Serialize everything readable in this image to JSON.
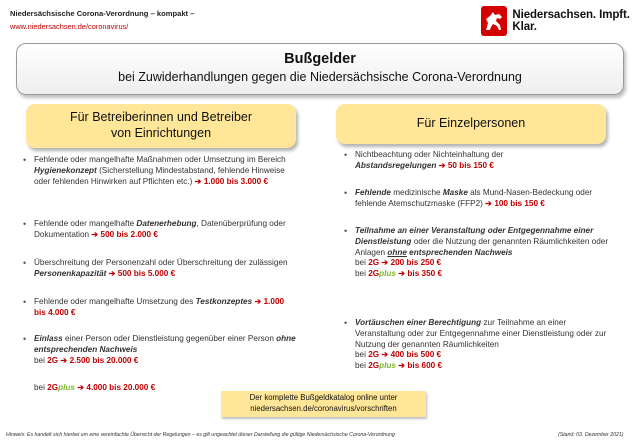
{
  "header": {
    "title": "Niedersächsische Corona-Verordnung – kompakt –",
    "url": "www.niedersachsen.de/coronavirus/",
    "logo_text": "Niedersachsen. Impft. Klar.",
    "logo_icon": "horse-icon",
    "logo_color": "#d40000"
  },
  "title": {
    "main": "Bußgelder",
    "sub": "bei Zuwiderhandlungen gegen die Niedersächsische Corona-Verordnung"
  },
  "left": {
    "heading_line1": "Für Betreiberinnen und Betreiber",
    "heading_line2": "von Einrichtungen",
    "items": [
      {
        "pre": "Fehlende oder mangelhafte Maßnahmen oder Umsetzung im Bereich ",
        "em": "Hygienekonzept",
        "post": " (Sicherstellung Mindestabstand, fehlende Hinweise oder fehlenden Hinwirken auf Pflichten etc.) ",
        "amount": "1.000 bis 3.000 €"
      },
      {
        "pre": "Fehlende oder mangelhafte ",
        "em": "Datenerhebung",
        "post": ", Datenüberprüfung oder Dokumentation ",
        "amount": "500 bis 2.000 €"
      },
      {
        "pre": "Überschreitung der Personenzahl oder Überschreitung der zulässigen ",
        "em": "Personenkapazität",
        "post": " ",
        "amount": "500 bis 5.000 €"
      },
      {
        "pre": "Fehlende oder mangelhafte Umsetzung des ",
        "em": "Testkonzeptes",
        "post": " ",
        "amount": "1.000 bis 4.000 €"
      },
      {
        "em1": "Einlass",
        "mid": " einer Person oder Dienstleistung gegenüber einer Person ",
        "em2": "ohne entsprechenden Nachweis",
        "bei": "bei ",
        "g2": "2G",
        "amount": "2.500 bis 20.000 €"
      }
    ],
    "extra_bei": "bei ",
    "extra_2g": "2G",
    "extra_plus": "plus",
    "extra_amount": "4.000 bis 20.000 €"
  },
  "right": {
    "heading": "Für Einzelpersonen",
    "items": [
      {
        "pre": "Nichtbeachtung oder Nichteinhaltung der ",
        "em": "Abstandsregelungen",
        "amount": "50 bis 150 €"
      },
      {
        "em": "Fehlende",
        "mid": " medizinische ",
        "em2": "Maske",
        "post": " als Mund-Nasen-Bedeckung oder fehlende Atemschutzmaske (FFP2) ",
        "amount": "100 bis 150 €"
      },
      {
        "em": "Teilnahme an einer Veranstaltung oder Entgegennahme einer Dienstleistung",
        "mid": " oder die Nutzung der genannten Räumlichkeiten oder Anlagen ",
        "em2": "ohne",
        "em3": " entsprechenden Nachweis",
        "bei": "bei ",
        "g2": "2G",
        "amount1": "200 bis 250 €",
        "bei2": "bei ",
        "g2b": "2G",
        "plus": "plus",
        "amount2": "350 €",
        "pre2": "bis "
      },
      {
        "em": "Vortäuschen einer Berechtigung",
        "mid": " zur Teilnahme an einer Veranstaltung oder zur Entgegennahme einer Dienstleistung oder zur Nutzung der genannten Räumlichkeiten",
        "bei": "bei ",
        "g2": "2G",
        "amount1": "400 bis 500 €",
        "bei2": "bei ",
        "g2b": "2G",
        "plus": "plus",
        "amount2": "600 €",
        "pre2": "bis "
      }
    ]
  },
  "cta": {
    "line1": "Der komplette  Bußgeldkatalog online unter",
    "line2": "niedersachsen.de/coronavirus/vorschriften"
  },
  "footer": {
    "note": "Hinweis: Es handelt sich hierbei um eine vereinfachte Übersicht der Regelungen – es gilt ungeachtet dieser Darstellung die gültige Niedersächsische Corona-Verordnung",
    "date": "(Stand: 03. Dezember 2021)"
  },
  "arrow_icon": "right-arrow-icon",
  "accent_color": "#c00000",
  "plus_color": "#7ab829",
  "box_color": "#ffe699"
}
